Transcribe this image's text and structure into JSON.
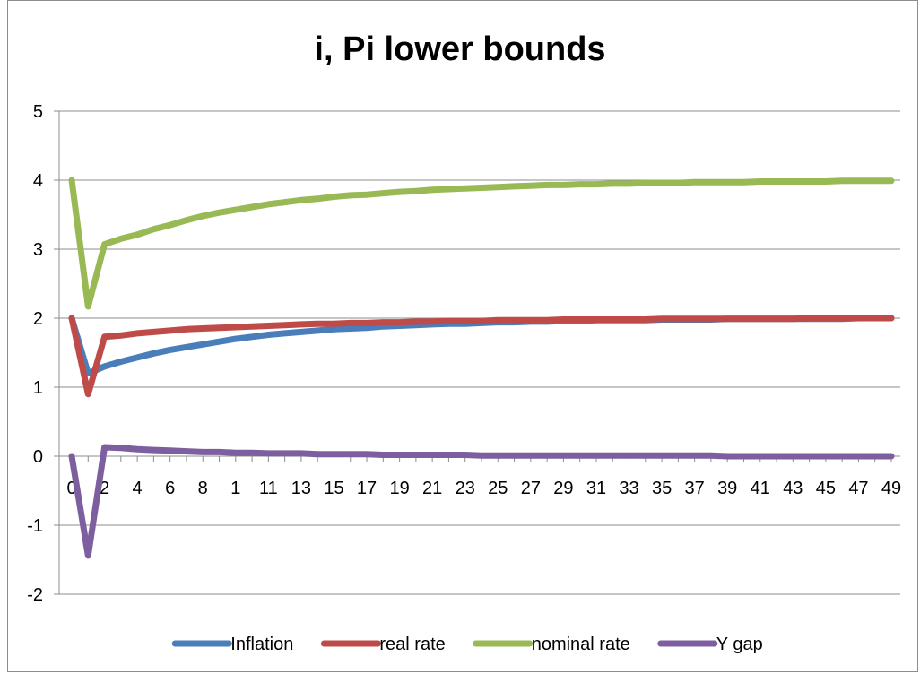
{
  "chart_data": {
    "type": "line",
    "title": "i, Pi lower bounds",
    "xlabel": "",
    "ylabel": "",
    "ylim": [
      -2,
      5
    ],
    "y_ticks": [
      "-2",
      "-1",
      "0",
      "1",
      "2",
      "3",
      "4",
      "5"
    ],
    "x_tick_labels": [
      "0",
      "2",
      "4",
      "6",
      "8",
      "1",
      "11",
      "13",
      "15",
      "17",
      "19",
      "21",
      "23",
      "25",
      "27",
      "29",
      "31",
      "33",
      "35",
      "37",
      "39",
      "41",
      "43",
      "45",
      "47",
      "49"
    ],
    "x": [
      0,
      1,
      2,
      3,
      4,
      5,
      6,
      7,
      8,
      9,
      10,
      11,
      12,
      13,
      14,
      15,
      16,
      17,
      18,
      19,
      20,
      21,
      22,
      23,
      24,
      25,
      26,
      27,
      28,
      29,
      30,
      31,
      32,
      33,
      34,
      35,
      36,
      37,
      38,
      39,
      40,
      41,
      42,
      43,
      44,
      45,
      46,
      47,
      48,
      49,
      50
    ],
    "grid": "horizontal",
    "legend_position": "bottom",
    "series": [
      {
        "name": "Inflation",
        "color": "#4a7ebb",
        "values": [
          2.0,
          1.2,
          1.3,
          1.37,
          1.43,
          1.49,
          1.54,
          1.58,
          1.62,
          1.66,
          1.7,
          1.73,
          1.76,
          1.78,
          1.8,
          1.82,
          1.84,
          1.85,
          1.86,
          1.88,
          1.89,
          1.9,
          1.91,
          1.92,
          1.92,
          1.93,
          1.94,
          1.94,
          1.95,
          1.95,
          1.96,
          1.96,
          1.97,
          1.97,
          1.97,
          1.97,
          1.98,
          1.98,
          1.98,
          1.98,
          1.99,
          1.99,
          1.99,
          1.99,
          1.99,
          1.99,
          1.99,
          1.99,
          2.0,
          2.0,
          2.0
        ]
      },
      {
        "name": "real rate",
        "color": "#be4b48",
        "values": [
          2.0,
          0.9,
          1.73,
          1.75,
          1.78,
          1.8,
          1.82,
          1.84,
          1.85,
          1.86,
          1.87,
          1.88,
          1.89,
          1.9,
          1.91,
          1.92,
          1.92,
          1.93,
          1.93,
          1.94,
          1.94,
          1.95,
          1.95,
          1.96,
          1.96,
          1.96,
          1.97,
          1.97,
          1.97,
          1.97,
          1.98,
          1.98,
          1.98,
          1.98,
          1.98,
          1.98,
          1.99,
          1.99,
          1.99,
          1.99,
          1.99,
          1.99,
          1.99,
          1.99,
          1.99,
          2.0,
          2.0,
          2.0,
          2.0,
          2.0,
          2.0
        ]
      },
      {
        "name": "nominal rate",
        "color": "#98b954",
        "values": [
          4.0,
          2.17,
          3.07,
          3.15,
          3.21,
          3.29,
          3.35,
          3.42,
          3.48,
          3.53,
          3.57,
          3.61,
          3.65,
          3.68,
          3.71,
          3.73,
          3.76,
          3.78,
          3.79,
          3.81,
          3.83,
          3.84,
          3.86,
          3.87,
          3.88,
          3.89,
          3.9,
          3.91,
          3.92,
          3.93,
          3.93,
          3.94,
          3.94,
          3.95,
          3.95,
          3.96,
          3.96,
          3.96,
          3.97,
          3.97,
          3.97,
          3.97,
          3.98,
          3.98,
          3.98,
          3.98,
          3.98,
          3.99,
          3.99,
          3.99,
          3.99
        ]
      },
      {
        "name": "Y gap",
        "color": "#7d5fa0",
        "values": [
          0.0,
          -1.44,
          0.13,
          0.12,
          0.1,
          0.09,
          0.08,
          0.07,
          0.06,
          0.06,
          0.05,
          0.05,
          0.04,
          0.04,
          0.04,
          0.03,
          0.03,
          0.03,
          0.03,
          0.02,
          0.02,
          0.02,
          0.02,
          0.02,
          0.02,
          0.01,
          0.01,
          0.01,
          0.01,
          0.01,
          0.01,
          0.01,
          0.01,
          0.01,
          0.01,
          0.01,
          0.01,
          0.01,
          0.01,
          0.01,
          0.0,
          0.0,
          0.0,
          0.0,
          0.0,
          0.0,
          0.0,
          0.0,
          0.0,
          0.0,
          0.0
        ]
      }
    ]
  }
}
